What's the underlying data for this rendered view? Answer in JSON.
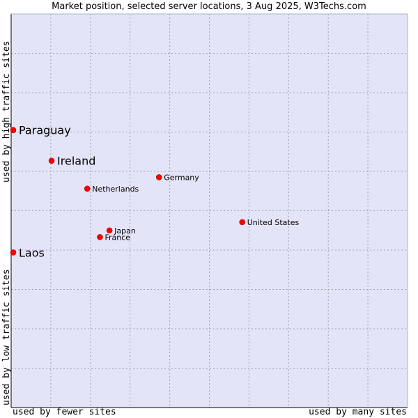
{
  "chart_data": {
    "type": "scatter",
    "title": "Market position, selected server locations, 3 Aug 2025, W3Techs.com",
    "xlabel_left": "used by fewer sites",
    "xlabel_right": "used by many sites",
    "ylabel_top": "used by high traffic sites",
    "ylabel_bottom": "used by low traffic sites",
    "xlim": [
      0,
      100
    ],
    "ylim": [
      0,
      100
    ],
    "grid": true,
    "points": [
      {
        "label": "Paraguay",
        "x": 0.3,
        "y": 70.5,
        "emphasis": true
      },
      {
        "label": "Ireland",
        "x": 10.2,
        "y": 62.7,
        "emphasis": true
      },
      {
        "label": "Germany",
        "x": 37.3,
        "y": 58.5,
        "emphasis": false
      },
      {
        "label": "Netherlands",
        "x": 19.2,
        "y": 55.6,
        "emphasis": false
      },
      {
        "label": "United States",
        "x": 58.3,
        "y": 47.1,
        "emphasis": false
      },
      {
        "label": "Japan",
        "x": 24.8,
        "y": 45.0,
        "emphasis": false
      },
      {
        "label": "France",
        "x": 22.4,
        "y": 43.3,
        "emphasis": false
      },
      {
        "label": "Laos",
        "x": 0.0,
        "y": 39.4,
        "emphasis": true
      }
    ],
    "colors": {
      "plot_background": "#e4e4f8",
      "grid": "#a0a0b8",
      "marker": "#ff0000",
      "axis": "#000000"
    }
  }
}
